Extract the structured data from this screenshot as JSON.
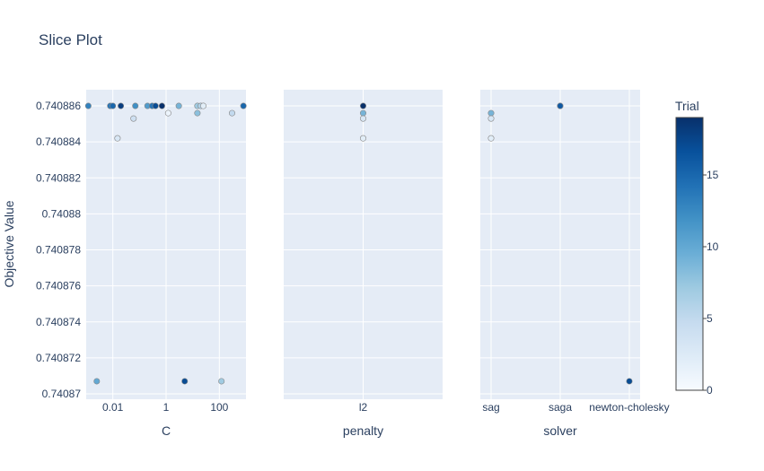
{
  "chart_data": {
    "type": "scatter",
    "title": "Slice Plot",
    "ylabel": "Objective Value",
    "yticks": [
      "0.740886",
      "0.740884",
      "0.740882",
      "0.74088",
      "0.740878",
      "0.740876",
      "0.740874",
      "0.740872",
      "0.74087"
    ],
    "ylim": [
      0.7408697,
      0.7408869
    ],
    "colorbar": {
      "title": "Trial",
      "range": [
        0,
        19
      ],
      "ticks": [
        "0",
        "5",
        "10",
        "15"
      ],
      "colorscale": [
        "#f7fbff",
        "#deebf7",
        "#c6dbef",
        "#9ecae1",
        "#6baed6",
        "#4292c6",
        "#2171b5",
        "#08519c",
        "#08306b"
      ]
    },
    "panels": [
      {
        "xlabel": "C",
        "xscale": "log",
        "xlim": [
          0.001,
          1000
        ],
        "xticks": [
          {
            "value": 0.01,
            "label": "0.01"
          },
          {
            "value": 1,
            "label": "1"
          },
          {
            "value": 100,
            "label": "100"
          }
        ],
        "points": [
          {
            "x": 0.0012,
            "y": 0.740886,
            "trial": 13
          },
          {
            "x": 0.008,
            "y": 0.740886,
            "trial": 14
          },
          {
            "x": 0.01,
            "y": 0.740886,
            "trial": 15
          },
          {
            "x": 0.02,
            "y": 0.740886,
            "trial": 18
          },
          {
            "x": 0.07,
            "y": 0.740886,
            "trial": 12
          },
          {
            "x": 0.2,
            "y": 0.740886,
            "trial": 11
          },
          {
            "x": 0.3,
            "y": 0.740886,
            "trial": 14
          },
          {
            "x": 0.4,
            "y": 0.740886,
            "trial": 17
          },
          {
            "x": 0.7,
            "y": 0.740886,
            "trial": 19
          },
          {
            "x": 3,
            "y": 0.740886,
            "trial": 9
          },
          {
            "x": 15,
            "y": 0.740886,
            "trial": 7
          },
          {
            "x": 20,
            "y": 0.740886,
            "trial": 6
          },
          {
            "x": 25,
            "y": 0.740886,
            "trial": 2
          },
          {
            "x": 800,
            "y": 0.740886,
            "trial": 15
          },
          {
            "x": 0.015,
            "y": 0.7408842,
            "trial": 3
          },
          {
            "x": 0.06,
            "y": 0.7408853,
            "trial": 4
          },
          {
            "x": 1.2,
            "y": 0.7408856,
            "trial": 1
          },
          {
            "x": 15,
            "y": 0.7408856,
            "trial": 8
          },
          {
            "x": 300,
            "y": 0.7408856,
            "trial": 5
          },
          {
            "x": 0.0025,
            "y": 0.7408707,
            "trial": 10
          },
          {
            "x": 5,
            "y": 0.7408707,
            "trial": 17
          },
          {
            "x": 120,
            "y": 0.7408707,
            "trial": 7
          }
        ]
      },
      {
        "xlabel": "penalty",
        "xscale": "category",
        "categories": [
          "l2"
        ],
        "points": [
          {
            "x": "l2",
            "y": 0.740886,
            "trial": 19
          },
          {
            "x": "l2",
            "y": 0.7408856,
            "trial": 9
          },
          {
            "x": "l2",
            "y": 0.7408853,
            "trial": 3
          },
          {
            "x": "l2",
            "y": 0.7408842,
            "trial": 2
          }
        ]
      },
      {
        "xlabel": "solver",
        "xscale": "category",
        "categories": [
          "sag",
          "saga",
          "newton-cholesky"
        ],
        "points": [
          {
            "x": "sag",
            "y": 0.7408856,
            "trial": 9
          },
          {
            "x": "sag",
            "y": 0.7408853,
            "trial": 3
          },
          {
            "x": "sag",
            "y": 0.7408842,
            "trial": 2
          },
          {
            "x": "saga",
            "y": 0.740886,
            "trial": 19
          },
          {
            "x": "saga",
            "y": 0.740886,
            "trial": 16
          },
          {
            "x": "newton-cholesky",
            "y": 0.7408707,
            "trial": 17
          }
        ]
      }
    ]
  }
}
